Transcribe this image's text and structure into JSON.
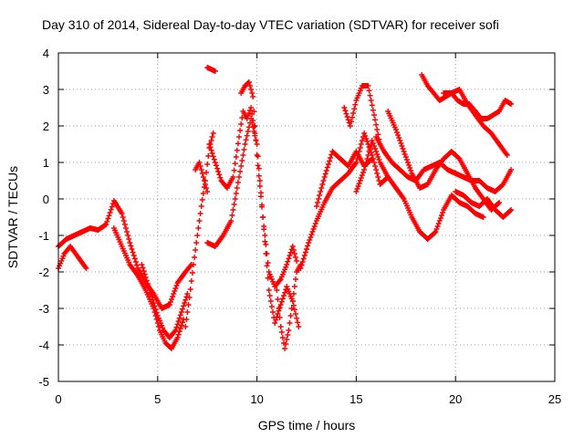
{
  "chart_data": {
    "type": "scatter",
    "title": "Day 310 of 2014, Sidereal Day-to-day VTEC variation (SDTVAR) for receiver sofi",
    "xlabel": "GPS time / hours",
    "ylabel": "SDTVAR / TECUs",
    "xlim": [
      0,
      25
    ],
    "ylim": [
      -5,
      4
    ],
    "x_ticks": [
      "0",
      "5",
      "10",
      "15",
      "20",
      "25"
    ],
    "y_ticks": [
      "-5",
      "-4",
      "-3",
      "-2",
      "-1",
      "0",
      "1",
      "2",
      "3",
      "4"
    ],
    "grid": true,
    "legend": "none",
    "marker": "+",
    "color": "#ff0000",
    "series": [
      {
        "x": [
          0.0,
          0.4,
          0.8,
          1.2,
          1.6,
          2.0,
          2.4,
          2.8,
          3.2,
          3.6,
          4.0,
          4.4,
          4.8,
          5.2,
          5.6,
          6.0,
          6.4,
          6.7
        ],
        "y": [
          -1.3,
          -1.1,
          -1.0,
          -0.9,
          -0.8,
          -0.85,
          -0.7,
          -0.05,
          -0.4,
          -1.2,
          -1.9,
          -2.3,
          -2.6,
          -3.0,
          -2.9,
          -2.3,
          -2.0,
          -1.8
        ]
      },
      {
        "x": [
          0.0,
          0.3,
          0.6,
          1.0,
          1.4
        ],
        "y": [
          -1.9,
          -1.5,
          -1.3,
          -1.6,
          -1.9
        ]
      },
      {
        "x": [
          2.8,
          3.2,
          3.6,
          4.0,
          4.4,
          4.8,
          5.1,
          5.4,
          5.7,
          6.0,
          6.3
        ],
        "y": [
          -0.8,
          -1.3,
          -1.8,
          -2.1,
          -2.5,
          -3.0,
          -3.6,
          -3.95,
          -4.1,
          -3.8,
          -3.3
        ]
      },
      {
        "x": [
          4.2,
          4.6,
          5.0,
          5.3,
          5.6,
          5.9,
          6.2,
          6.5
        ],
        "y": [
          -1.8,
          -2.5,
          -3.2,
          -3.6,
          -3.8,
          -3.6,
          -3.1,
          -2.6
        ]
      },
      {
        "x": [
          6.4,
          6.6,
          6.8,
          7.0,
          7.2,
          7.4,
          7.6,
          7.8
        ],
        "y": [
          -3.5,
          -2.7,
          -1.8,
          -1.0,
          -0.2,
          0.5,
          1.4,
          1.8
        ]
      },
      {
        "x": [
          6.9,
          7.1,
          7.3,
          7.5
        ],
        "y": [
          0.8,
          1.0,
          0.6,
          0.2
        ]
      },
      {
        "x": [
          7.6,
          7.9,
          8.2,
          8.5,
          8.8,
          9.1,
          9.3,
          9.5,
          9.7,
          9.9
        ],
        "y": [
          1.5,
          1.0,
          0.5,
          0.3,
          0.6,
          1.7,
          2.4,
          2.2,
          2.5,
          1.8
        ]
      },
      {
        "x": [
          7.5,
          7.9,
          8.3,
          8.7,
          9.1,
          9.4,
          9.7,
          10.0,
          10.3,
          10.6,
          10.9,
          11.2,
          11.5,
          11.8,
          12.0
        ],
        "y": [
          -1.2,
          -1.3,
          -1.0,
          -0.6,
          0.6,
          1.5,
          2.2,
          1.5,
          -0.5,
          -2.0,
          -2.4,
          -2.2,
          -1.8,
          -1.3,
          -1.7
        ]
      },
      {
        "x": [
          7.5,
          7.7,
          7.9
        ],
        "y": [
          3.6,
          3.55,
          3.5
        ]
      },
      {
        "x": [
          9.2,
          9.4,
          9.6,
          9.8,
          10.0,
          10.3,
          10.6,
          10.9,
          11.2,
          11.5,
          11.8,
          12.1
        ],
        "y": [
          2.9,
          3.1,
          3.2,
          2.8,
          1.2,
          -0.5,
          -2.5,
          -3.4,
          -2.9,
          -2.4,
          -2.8,
          -3.5
        ]
      },
      {
        "x": [
          11.0,
          11.2,
          11.4,
          11.6,
          11.8,
          12.0,
          12.2
        ],
        "y": [
          -2.5,
          -3.5,
          -4.1,
          -3.6,
          -2.8,
          -2.0,
          -1.8
        ]
      },
      {
        "x": [
          12.2,
          12.6,
          13.0,
          13.4,
          13.8,
          14.2,
          14.6,
          15.0,
          15.4,
          15.8,
          16.2,
          16.6
        ],
        "y": [
          -1.9,
          -1.2,
          -0.6,
          -0.1,
          0.3,
          0.5,
          0.7,
          1.0,
          1.8,
          1.2,
          0.4,
          0.6
        ]
      },
      {
        "x": [
          13.0,
          13.4,
          13.8,
          14.2,
          14.6,
          15.0,
          15.4,
          15.8
        ],
        "y": [
          -0.2,
          0.6,
          1.3,
          1.1,
          0.9,
          1.3,
          0.9,
          1.1
        ]
      },
      {
        "x": [
          14.4,
          14.7,
          15.0,
          15.3,
          15.6,
          15.9,
          16.2
        ],
        "y": [
          2.5,
          2.0,
          2.7,
          3.1,
          3.1,
          2.3,
          1.5
        ]
      },
      {
        "x": [
          15.0,
          15.4,
          15.8,
          16.2,
          16.6,
          17.0,
          17.4,
          17.8,
          18.2,
          18.6,
          19.0,
          19.4,
          19.8,
          20.2,
          20.6,
          21.0,
          21.4
        ],
        "y": [
          0.2,
          0.8,
          1.6,
          1.0,
          0.6,
          0.3,
          0.0,
          -0.5,
          -0.9,
          -1.1,
          -0.9,
          -0.3,
          0.1,
          -0.1,
          -0.2,
          -0.4,
          -0.5
        ]
      },
      {
        "x": [
          16.6,
          17.0,
          17.4,
          17.8,
          18.2,
          18.6,
          19.0,
          19.4,
          19.8,
          20.2,
          20.6,
          21.0,
          21.4,
          21.8,
          22.2
        ],
        "y": [
          2.4,
          1.9,
          1.3,
          0.7,
          0.3,
          0.4,
          0.8,
          1.1,
          1.3,
          1.1,
          0.7,
          0.3,
          0.0,
          -0.3,
          -0.1
        ]
      },
      {
        "x": [
          16.0,
          16.4,
          16.8,
          17.2,
          17.6,
          18.0,
          18.4,
          18.8,
          19.2,
          19.6,
          20.0,
          20.4,
          20.8,
          21.2,
          21.6,
          22.0,
          22.4,
          22.8
        ],
        "y": [
          1.7,
          1.3,
          1.0,
          0.8,
          0.6,
          0.5,
          0.8,
          0.9,
          1.0,
          0.8,
          0.7,
          0.6,
          0.5,
          0.5,
          0.3,
          0.2,
          0.4,
          0.8
        ]
      },
      {
        "x": [
          18.3,
          18.6,
          18.9,
          19.2,
          19.5,
          19.8,
          20.1,
          20.4,
          20.7,
          21.0,
          21.3,
          21.6,
          21.9,
          22.2,
          22.5,
          22.8
        ],
        "y": [
          3.4,
          3.1,
          2.9,
          2.7,
          2.8,
          2.9,
          2.7,
          2.6,
          2.6,
          2.4,
          2.2,
          2.2,
          2.3,
          2.4,
          2.7,
          2.6
        ]
      },
      {
        "x": [
          19.4,
          19.8,
          20.2,
          20.6,
          21.0,
          21.4,
          21.8,
          22.2,
          22.6
        ],
        "y": [
          2.9,
          2.9,
          3.0,
          2.6,
          2.3,
          2.0,
          1.8,
          1.5,
          1.2
        ]
      },
      {
        "x": [
          20.0,
          20.4,
          20.8,
          21.2,
          21.6,
          22.0,
          22.4,
          22.8
        ],
        "y": [
          0.2,
          0.1,
          -0.1,
          -0.2,
          0.0,
          -0.3,
          -0.5,
          -0.3
        ]
      }
    ]
  }
}
